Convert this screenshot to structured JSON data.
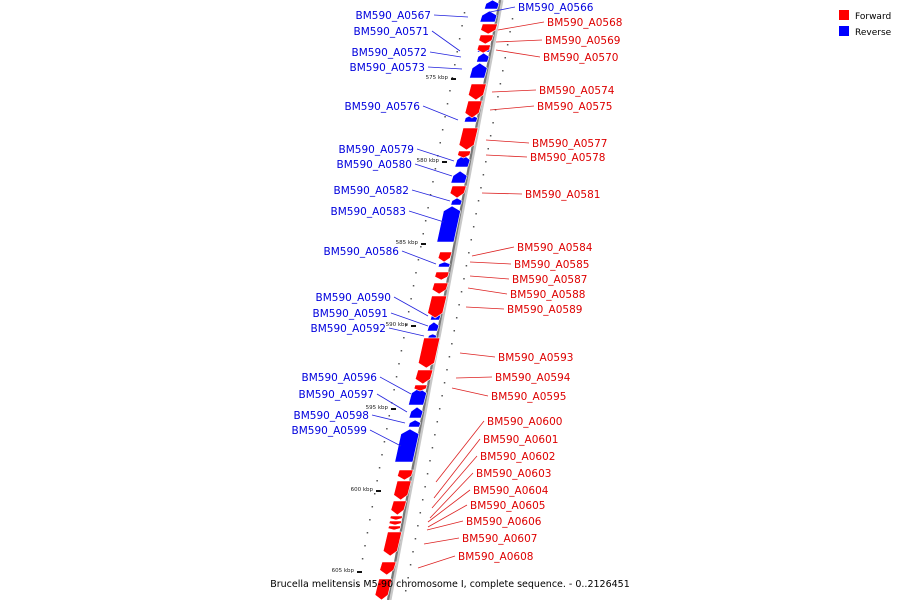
{
  "caption": "Brucella melitensis M5-90 chromosome I, complete sequence. - 0..2126451",
  "legend": {
    "forward": {
      "label": "Forward",
      "color": "#ff0000"
    },
    "reverse": {
      "label": "Reverse",
      "color": "#0000ff"
    }
  },
  "ticks": [
    "575 kbp",
    "580 kbp",
    "585 kbp",
    "590 kbp",
    "595 kbp",
    "600 kbp",
    "605 kbp"
  ],
  "forward_genes": [
    "BM590_A0568",
    "BM590_A0569",
    "BM590_A0570",
    "BM590_A0574",
    "BM590_A0575",
    "BM590_A0577",
    "BM590_A0578",
    "BM590_A0581",
    "BM590_A0584",
    "BM590_A0585",
    "BM590_A0587",
    "BM590_A0588",
    "BM590_A0589",
    "BM590_A0593",
    "BM590_A0594",
    "BM590_A0595",
    "BM590_A0600",
    "BM590_A0601",
    "BM590_A0602",
    "BM590_A0603",
    "BM590_A0604",
    "BM590_A0605",
    "BM590_A0606",
    "BM590_A0607",
    "BM590_A0608"
  ],
  "reverse_genes": [
    "BM590_A0566",
    "BM590_A0567",
    "BM590_A0571",
    "BM590_A0572",
    "BM590_A0573",
    "BM590_A0576",
    "BM590_A0579",
    "BM590_A0580",
    "BM590_A0582",
    "BM590_A0583",
    "BM590_A0586",
    "BM590_A0590",
    "BM590_A0591",
    "BM590_A0592",
    "BM590_A0596",
    "BM590_A0597",
    "BM590_A0598",
    "BM590_A0599"
  ]
}
